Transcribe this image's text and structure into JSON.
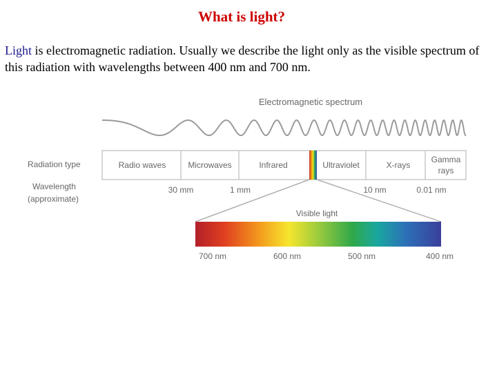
{
  "slide": {
    "title": "What is light?",
    "intro_keyword": "Light",
    "intro_rest": " is electromagnetic radiation. Usually we describe the light only as the visible spectrum of this radiation with wavelengths between 400 nm and 700 nm."
  },
  "diagram": {
    "spectrum_title": "Electromagnetic spectrum",
    "radiation_type_label": "Radiation type",
    "wavelength_label_line1": "Wavelength",
    "wavelength_label_line2": "(approximate)",
    "bands": [
      "Radio waves",
      "Microwaves",
      "Infrared",
      "Ultraviolet",
      "X-rays"
    ],
    "gamma_line1": "Gamma",
    "gamma_line2": "rays",
    "boundaries": [
      "30 mm",
      "1 mm",
      "10 nm",
      "0.01 nm"
    ],
    "visible_title": "Visible light",
    "visible_ticks": [
      "700 nm",
      "600 nm",
      "500 nm",
      "400 nm"
    ]
  }
}
